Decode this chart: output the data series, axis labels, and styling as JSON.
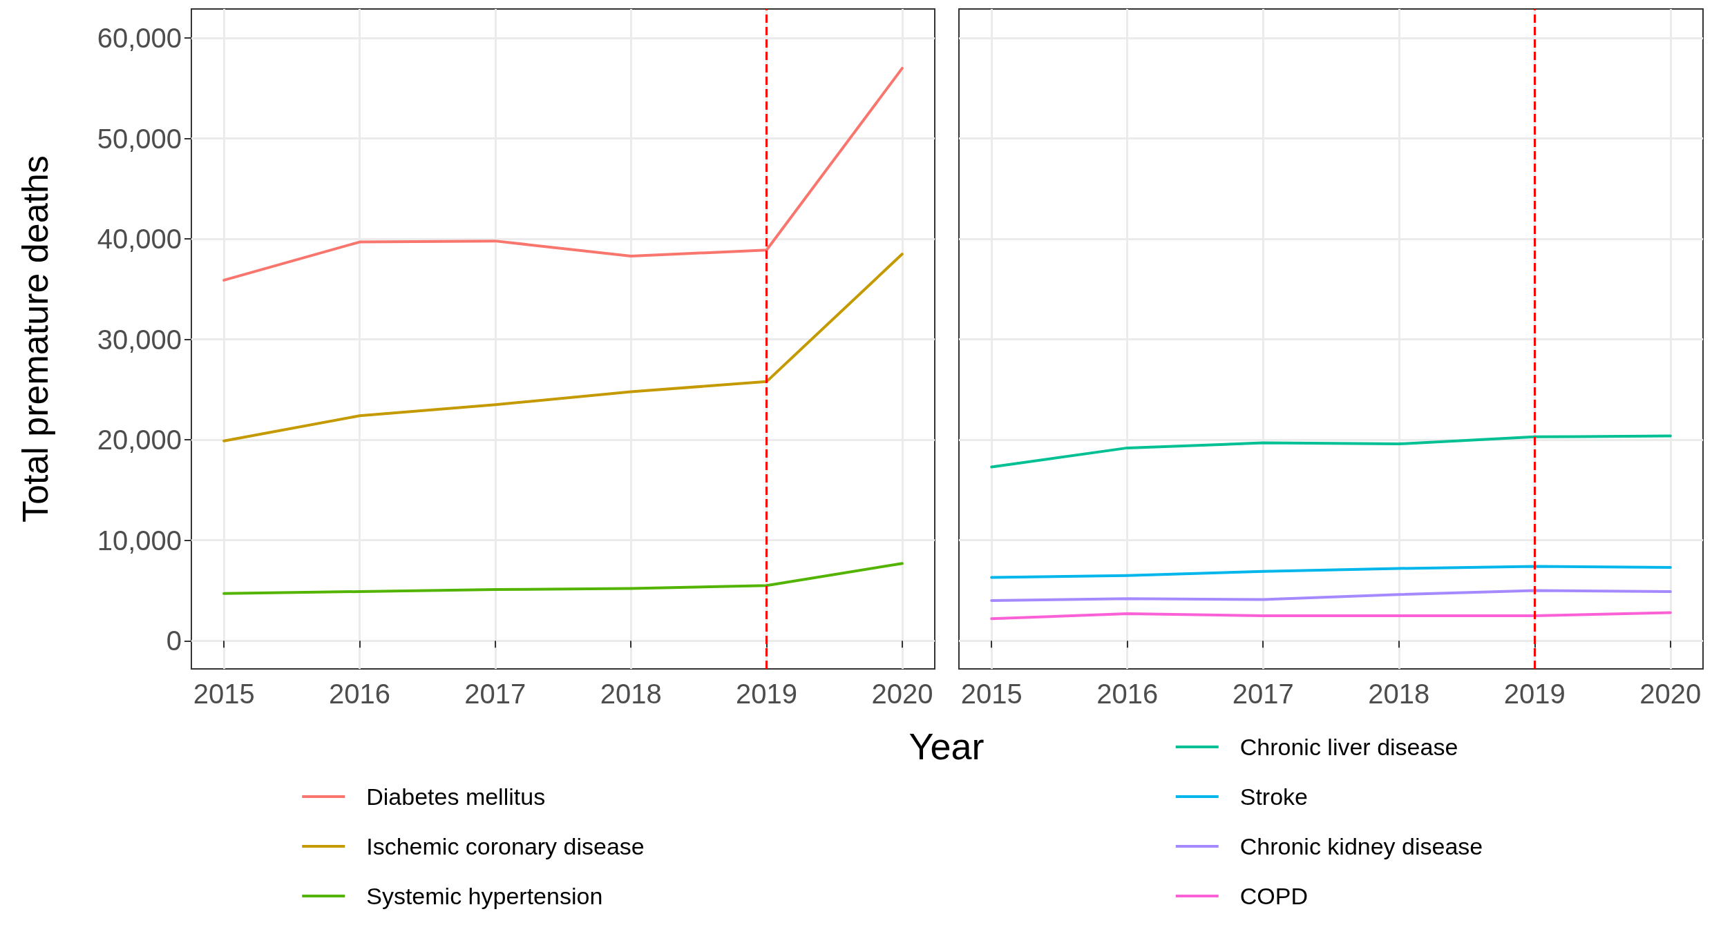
{
  "chart_data": [
    {
      "type": "line",
      "xlabel": "Year",
      "ylabel": "Total premature deaths",
      "x": [
        2015,
        2016,
        2017,
        2018,
        2019,
        2020
      ],
      "series": [
        {
          "name": "Diabetes mellitus",
          "color": "#f8766d",
          "values": [
            35900,
            39700,
            39800,
            38300,
            38900,
            57000
          ]
        },
        {
          "name": "Ischemic coronary disease",
          "color": "#c49a00",
          "values": [
            19900,
            22400,
            23500,
            24800,
            25800,
            38500
          ]
        },
        {
          "name": "Systemic hypertension",
          "color": "#53b400",
          "values": [
            4700,
            4900,
            5100,
            5200,
            5500,
            7700
          ]
        }
      ],
      "xlim": [
        2014.76,
        2020.24
      ],
      "xticks": [
        2015,
        2016,
        2017,
        2018,
        2019,
        2020
      ],
      "ylim": [
        -2800,
        62900
      ],
      "yticks": [
        {
          "value": 0,
          "label": "0"
        },
        {
          "value": 10000,
          "label": "10,000"
        },
        {
          "value": 20000,
          "label": "20,000"
        },
        {
          "value": 30000,
          "label": "30,000"
        },
        {
          "value": 40000,
          "label": "40,000"
        },
        {
          "value": 50000,
          "label": "50,000"
        },
        {
          "value": 60000,
          "label": "60,000"
        }
      ],
      "ref_lines": [
        {
          "axis": "x",
          "value": 2019,
          "color": "#ff0000",
          "line_style": "dashed"
        }
      ],
      "grid": true,
      "legend": "bottom",
      "marker": "none",
      "line_style": "solid"
    },
    {
      "type": "line",
      "x": [
        2015,
        2016,
        2017,
        2018,
        2019,
        2020
      ],
      "series": [
        {
          "name": "Chronic liver disease",
          "color": "#00c094",
          "values": [
            17300,
            19200,
            19700,
            19600,
            20300,
            20400
          ]
        },
        {
          "name": "Stroke",
          "color": "#00b6eb",
          "values": [
            6300,
            6500,
            6900,
            7200,
            7400,
            7300
          ]
        },
        {
          "name": "Chronic kidney disease",
          "color": "#a58aff",
          "values": [
            4000,
            4200,
            4100,
            4600,
            5000,
            4900
          ]
        },
        {
          "name": "COPD",
          "color": "#fb61d7",
          "values": [
            2200,
            2700,
            2500,
            2500,
            2500,
            2800
          ]
        }
      ],
      "xlim": [
        2014.76,
        2020.24
      ],
      "xticks": [
        2015,
        2016,
        2017,
        2018,
        2019,
        2020
      ],
      "ylim": [
        -2800,
        62900
      ],
      "yticks": [
        0,
        10000,
        20000,
        30000,
        40000,
        50000,
        60000
      ],
      "ref_lines": [
        {
          "axis": "x",
          "value": 2019,
          "color": "#ff0000",
          "line_style": "dashed"
        }
      ],
      "grid": true,
      "legend": "bottom",
      "marker": "none",
      "line_style": "solid",
      "tick_labels": "x"
    }
  ]
}
